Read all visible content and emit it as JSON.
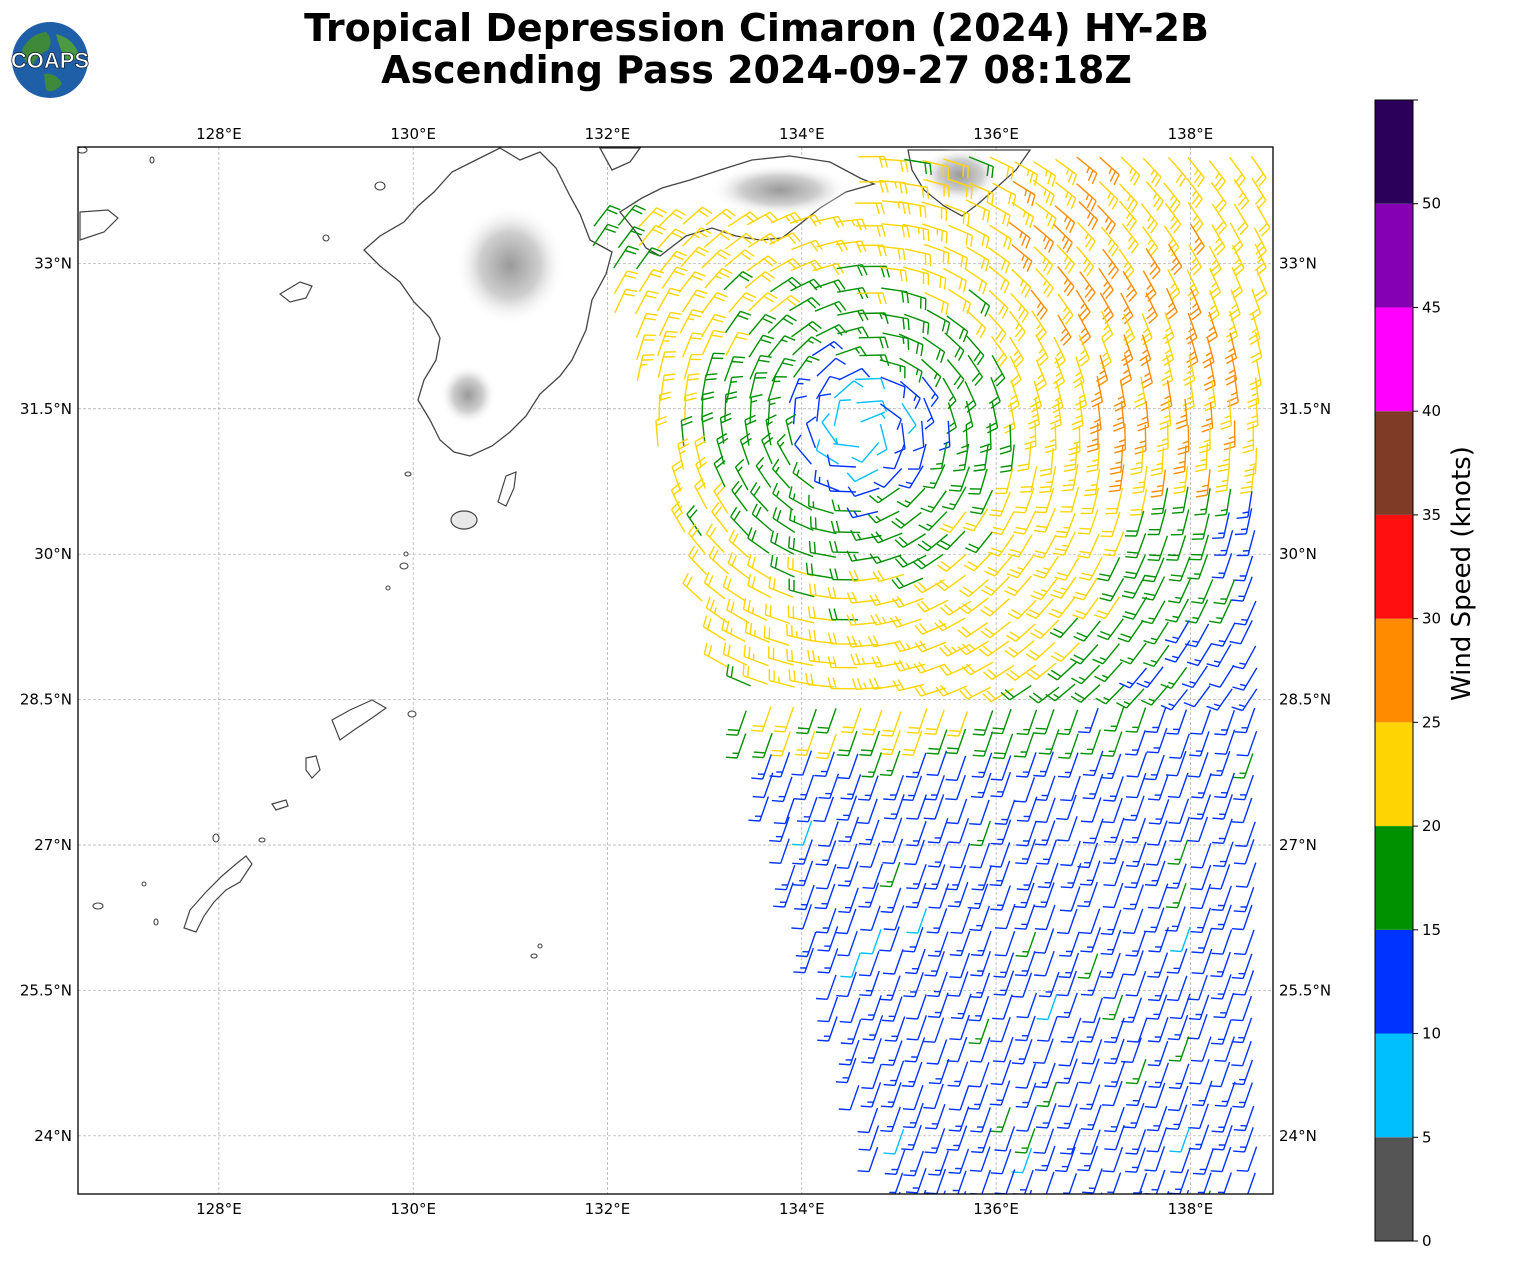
{
  "title": {
    "line1": "Tropical Depression Cimaron (2024) HY-2B",
    "line2": "Ascending Pass 2024-09-27 08:18Z"
  },
  "logo": {
    "text": "COAPS",
    "icon": "globe-icon"
  },
  "map": {
    "lon_range": [
      126.55,
      138.85
    ],
    "lat_range": [
      23.4,
      34.2
    ],
    "lon_ticks": [
      "128°E",
      "130°E",
      "132°E",
      "134°E",
      "136°E",
      "138°E"
    ],
    "lat_ticks": [
      "24°N",
      "25.5°N",
      "27°N",
      "28.5°N",
      "30°N",
      "31.5°N",
      "33°N"
    ],
    "gridlines": true,
    "land_color": "#ffffff",
    "coast_color": "#444444"
  },
  "colorbar": {
    "label": "Wind Speed (knots)",
    "ticks": [
      "0",
      "5",
      "10",
      "15",
      "20",
      "25",
      "30",
      "35",
      "40",
      "45",
      "50"
    ],
    "bins": [
      {
        "min": 0,
        "max": 5,
        "color": "#555555"
      },
      {
        "min": 5,
        "max": 10,
        "color": "#00bfff"
      },
      {
        "min": 10,
        "max": 15,
        "color": "#0033ff"
      },
      {
        "min": 15,
        "max": 20,
        "color": "#009100"
      },
      {
        "min": 20,
        "max": 25,
        "color": "#ffd500"
      },
      {
        "min": 25,
        "max": 30,
        "color": "#ff8c00"
      },
      {
        "min": 30,
        "max": 35,
        "color": "#ff0f0f"
      },
      {
        "min": 35,
        "max": 40,
        "color": "#7f3b24"
      },
      {
        "min": 40,
        "max": 45,
        "color": "#ff00ff"
      },
      {
        "min": 45,
        "max": 50,
        "color": "#8600b3"
      },
      {
        "min": 50,
        "max": 55,
        "color": "#2b005a"
      }
    ]
  },
  "wind_field": {
    "storm_center": {
      "lon": 134.6,
      "lat": 31.3
    },
    "core_speed_kt": 7,
    "max_speed_kt": 32,
    "swath_west_edge_lon_at_33N": 131.9,
    "swath_west_edge_lon_at_24N": 134.7
  }
}
